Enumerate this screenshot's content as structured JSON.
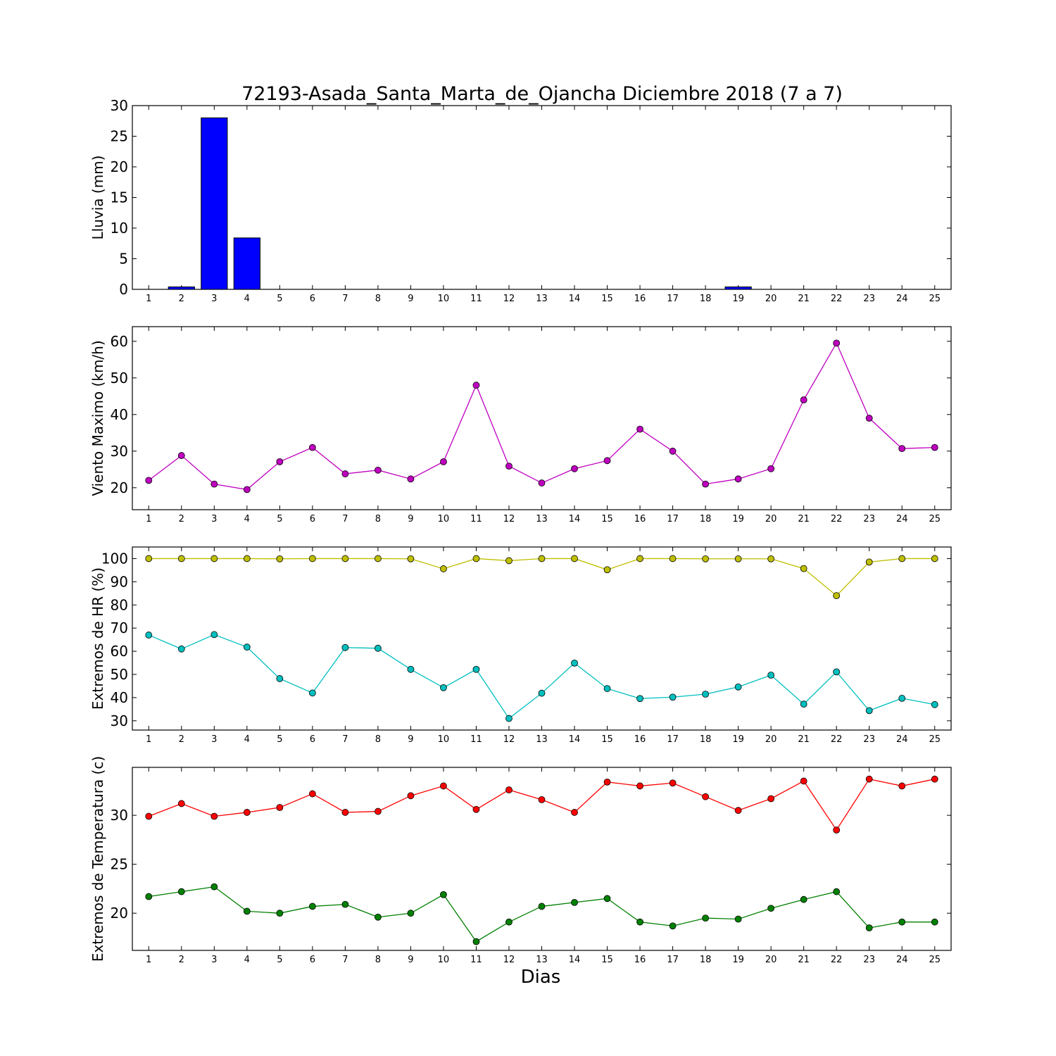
{
  "figure": {
    "title": "72193-Asada_Santa_Marta_de_Ojancha Diciembre 2018  (7 a 7)",
    "xlabel": "Dias"
  },
  "chart_data": [
    {
      "type": "bar",
      "ylabel": "Lluvia (mm)",
      "categories": [
        1,
        2,
        3,
        4,
        5,
        6,
        7,
        8,
        9,
        10,
        11,
        12,
        13,
        14,
        15,
        16,
        17,
        18,
        19,
        20,
        21,
        22,
        23,
        24,
        25
      ],
      "ylim": [
        0,
        30
      ],
      "yticks": [
        0,
        5,
        10,
        15,
        20,
        25,
        30
      ],
      "xlim": [
        0.5,
        25.5
      ],
      "grid": false,
      "series": [
        {
          "color": "#0000ff",
          "values": [
            0,
            0.4,
            28.0,
            8.4,
            0,
            0,
            0,
            0,
            0,
            0,
            0,
            0,
            0,
            0,
            0,
            0,
            0,
            0,
            0.4,
            0,
            0,
            0,
            0,
            0,
            0
          ]
        }
      ]
    },
    {
      "type": "line",
      "ylabel": "Viento Maximo (km/h)",
      "x": [
        1,
        2,
        3,
        4,
        5,
        6,
        7,
        8,
        9,
        10,
        11,
        12,
        13,
        14,
        15,
        16,
        17,
        18,
        19,
        20,
        21,
        22,
        23,
        24,
        25
      ],
      "ylim": [
        14,
        64
      ],
      "yticks": [
        20,
        30,
        40,
        50,
        60
      ],
      "xlim": [
        0.5,
        25.5
      ],
      "grid": false,
      "series": [
        {
          "color": "#bf00bf",
          "values": [
            22.0,
            28.8,
            21.0,
            19.5,
            27.1,
            31.0,
            23.8,
            24.8,
            22.4,
            27.1,
            48.0,
            25.9,
            21.3,
            25.2,
            27.4,
            36.0,
            30.0,
            21.0,
            22.4,
            25.2,
            44.0,
            59.5,
            39.0,
            30.7,
            31.0
          ]
        }
      ]
    },
    {
      "type": "line",
      "ylabel": "Extremos de HR (%)",
      "x": [
        1,
        2,
        3,
        4,
        5,
        6,
        7,
        8,
        9,
        10,
        11,
        12,
        13,
        14,
        15,
        16,
        17,
        18,
        19,
        20,
        21,
        22,
        23,
        24,
        25
      ],
      "ylim": [
        26,
        105
      ],
      "yticks": [
        30,
        40,
        50,
        60,
        70,
        80,
        90,
        100
      ],
      "xlim": [
        0.5,
        25.5
      ],
      "grid": false,
      "series": [
        {
          "color": "#bfbf00",
          "values": [
            100,
            100,
            100,
            100,
            99.9,
            100,
            100,
            100,
            99.9,
            95.6,
            100,
            99.1,
            100,
            100,
            95.2,
            100,
            100,
            99.9,
            99.9,
            99.9,
            95.7,
            84.0,
            98.5,
            100,
            100
          ]
        },
        {
          "color": "#00bfbf",
          "values": [
            67.0,
            61.0,
            67.2,
            61.8,
            48.2,
            42.0,
            61.6,
            61.3,
            52.2,
            44.3,
            52.2,
            31.0,
            41.9,
            54.9,
            43.9,
            39.6,
            40.2,
            41.5,
            44.6,
            49.7,
            37.2,
            51.1,
            34.4,
            39.7,
            37.0
          ]
        }
      ]
    },
    {
      "type": "line",
      "ylabel": "Extremos de Temperatura (c)",
      "x": [
        1,
        2,
        3,
        4,
        5,
        6,
        7,
        8,
        9,
        10,
        11,
        12,
        13,
        14,
        15,
        16,
        17,
        18,
        19,
        20,
        21,
        22,
        23,
        24,
        25
      ],
      "ylim": [
        16.2,
        34.9
      ],
      "yticks": [
        20,
        25,
        30
      ],
      "xlim": [
        0.5,
        25.5
      ],
      "grid": false,
      "series": [
        {
          "color": "#ff0000",
          "values": [
            29.9,
            31.2,
            29.9,
            30.3,
            30.8,
            32.2,
            30.3,
            30.4,
            32.0,
            33.0,
            30.6,
            32.6,
            31.6,
            30.3,
            33.4,
            33.0,
            33.3,
            31.9,
            30.5,
            31.7,
            33.5,
            28.5,
            33.7,
            33.0,
            33.7
          ]
        },
        {
          "color": "#008000",
          "values": [
            21.7,
            22.2,
            22.7,
            20.2,
            20.0,
            20.7,
            20.9,
            19.6,
            20.0,
            21.9,
            17.1,
            19.1,
            20.7,
            21.1,
            21.5,
            19.1,
            18.7,
            19.5,
            19.4,
            20.5,
            21.4,
            22.2,
            18.5,
            19.1,
            19.1
          ]
        }
      ]
    }
  ]
}
